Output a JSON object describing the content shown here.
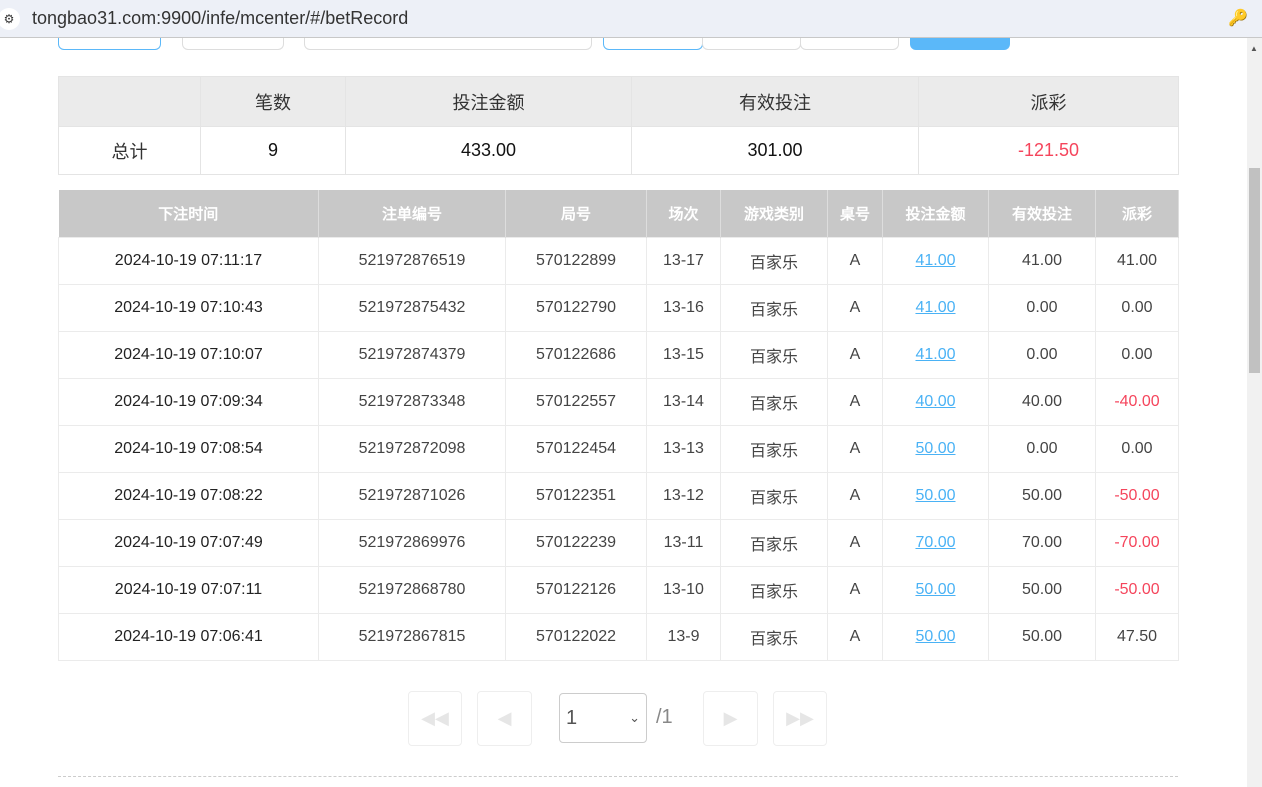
{
  "browser": {
    "url": "tongbao31.com:9900/infe/mcenter/#/betRecord"
  },
  "summary": {
    "headers": [
      "",
      "笔数",
      "投注金额",
      "有效投注",
      "派彩"
    ],
    "row": [
      "总计",
      "9",
      "433.00",
      "301.00",
      "-121.50"
    ]
  },
  "table": {
    "headers": [
      "下注时间",
      "注单编号",
      "局号",
      "场次",
      "游戏类别",
      "桌号",
      "投注金额",
      "有效投注",
      "派彩"
    ],
    "rows": [
      [
        "2024-10-19 07:11:17",
        "521972876519",
        "570122899",
        "13-17",
        "百家乐",
        "A",
        "41.00",
        "41.00",
        "41.00"
      ],
      [
        "2024-10-19 07:10:43",
        "521972875432",
        "570122790",
        "13-16",
        "百家乐",
        "A",
        "41.00",
        "0.00",
        "0.00"
      ],
      [
        "2024-10-19 07:10:07",
        "521972874379",
        "570122686",
        "13-15",
        "百家乐",
        "A",
        "41.00",
        "0.00",
        "0.00"
      ],
      [
        "2024-10-19 07:09:34",
        "521972873348",
        "570122557",
        "13-14",
        "百家乐",
        "A",
        "40.00",
        "40.00",
        "-40.00"
      ],
      [
        "2024-10-19 07:08:54",
        "521972872098",
        "570122454",
        "13-13",
        "百家乐",
        "A",
        "50.00",
        "0.00",
        "0.00"
      ],
      [
        "2024-10-19 07:08:22",
        "521972871026",
        "570122351",
        "13-12",
        "百家乐",
        "A",
        "50.00",
        "50.00",
        "-50.00"
      ],
      [
        "2024-10-19 07:07:49",
        "521972869976",
        "570122239",
        "13-11",
        "百家乐",
        "A",
        "70.00",
        "70.00",
        "-70.00"
      ],
      [
        "2024-10-19 07:07:11",
        "521972868780",
        "570122126",
        "13-10",
        "百家乐",
        "A",
        "50.00",
        "50.00",
        "-50.00"
      ],
      [
        "2024-10-19 07:06:41",
        "521972867815",
        "570122022",
        "13-9",
        "百家乐",
        "A",
        "50.00",
        "50.00",
        "47.50"
      ]
    ]
  },
  "pagination": {
    "current": "1",
    "total": "/1"
  },
  "colors": {
    "negative": "#f5455c",
    "link": "#4ab2f5",
    "accent": "#5bb8f9"
  }
}
